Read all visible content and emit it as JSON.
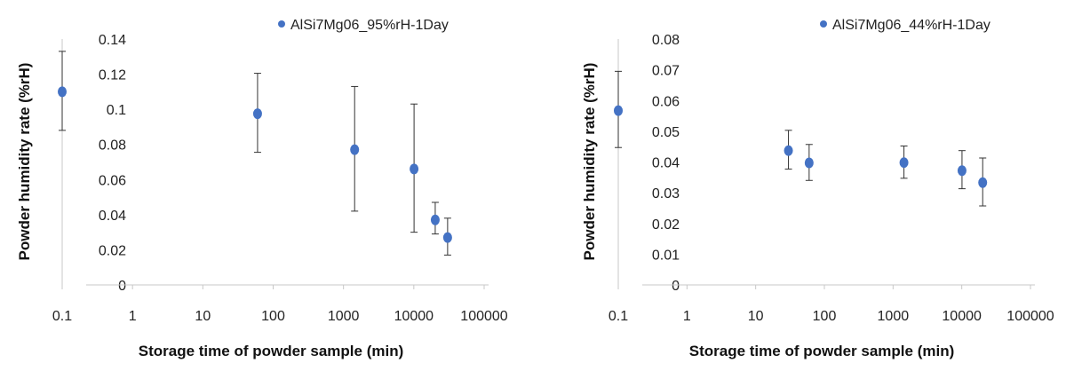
{
  "colors": {
    "marker": "#4472C4",
    "error_bar": "#333333",
    "axis": "#c8c8c8",
    "background": "#ffffff"
  },
  "chart_data": [
    {
      "type": "scatter",
      "x_scale": "log",
      "x_ticks": [
        "0.1",
        "1",
        "10",
        "100",
        "1000",
        "10000",
        "100000"
      ],
      "y_ticks": [
        "0",
        "0.02",
        "0.04",
        "0.06",
        "0.08",
        "0.1",
        "0.12",
        "0.14"
      ],
      "ylim": [
        0,
        0.14
      ],
      "xlabel": "Storage time of powder sample (min)",
      "ylabel": "Powder humidity rate (%rH)",
      "legend": "top-right",
      "grid": false,
      "series": [
        {
          "name": "AlSi7Mg06_95%rH-1Day",
          "points": [
            {
              "x": 0.1,
              "y": 0.11,
              "err_low": 0.088,
              "err_high": 0.133
            },
            {
              "x": 60,
              "y": 0.0975,
              "err_low": 0.0755,
              "err_high": 0.1205
            },
            {
              "x": 1440,
              "y": 0.077,
              "err_low": 0.042,
              "err_high": 0.113
            },
            {
              "x": 10080,
              "y": 0.066,
              "err_low": 0.03,
              "err_high": 0.103
            },
            {
              "x": 20160,
              "y": 0.037,
              "err_low": 0.029,
              "err_high": 0.047
            },
            {
              "x": 30240,
              "y": 0.027,
              "err_low": 0.017,
              "err_high": 0.038
            }
          ]
        }
      ]
    },
    {
      "type": "scatter",
      "x_scale": "log",
      "x_ticks": [
        "0.1",
        "1",
        "10",
        "100",
        "1000",
        "10000",
        "100000"
      ],
      "y_ticks": [
        "0",
        "0.01",
        "0.02",
        "0.03",
        "0.04",
        "0.05",
        "0.06",
        "0.07",
        "0.08"
      ],
      "ylim": [
        0,
        0.08
      ],
      "xlabel": "Storage time of powder sample (min)",
      "ylabel": "Powder humidity rate (%rH)",
      "legend": "top-right",
      "grid": false,
      "series": [
        {
          "name": "AlSi7Mg06_44%rH-1Day",
          "points": [
            {
              "x": 0.1,
              "y": 0.0567,
              "err_low": 0.0447,
              "err_high": 0.0695
            },
            {
              "x": 30,
              "y": 0.0437,
              "err_low": 0.0377,
              "err_high": 0.0503
            },
            {
              "x": 60,
              "y": 0.0397,
              "err_low": 0.034,
              "err_high": 0.0457
            },
            {
              "x": 1440,
              "y": 0.0398,
              "err_low": 0.0347,
              "err_high": 0.0452
            },
            {
              "x": 10080,
              "y": 0.0372,
              "err_low": 0.0313,
              "err_high": 0.0437
            },
            {
              "x": 20160,
              "y": 0.0333,
              "err_low": 0.0257,
              "err_high": 0.0413
            }
          ]
        }
      ]
    }
  ]
}
